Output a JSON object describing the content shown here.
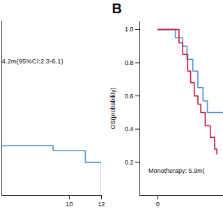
{
  "chart_data": [
    {
      "type": "line",
      "xlim": [
        5.8,
        12
      ],
      "xticks": [
        10,
        12
      ],
      "ylim": [
        0,
        1.05
      ],
      "tick_labels": "x",
      "annotations": [
        {
          "text": "4.2m(95%CI:2.3-6.1)",
          "x": 5.8,
          "y": 0.81
        }
      ],
      "series": [
        {
          "color": "#4f8fd0",
          "line_style": "step",
          "x": [
            5.8,
            9,
            11,
            12
          ],
          "values": [
            0.3,
            0.27,
            0.2,
            0.0
          ]
        }
      ]
    },
    {
      "type": "line",
      "title": "B",
      "y_label": "OS(probability)",
      "xlim": [
        -2.5,
        9
      ],
      "xticks": [
        0
      ],
      "ylim": [
        0,
        1.05
      ],
      "yticks": [
        {
          "value": 0.2,
          "label": "0.2"
        },
        {
          "value": 0.4,
          "label": "0.4"
        },
        {
          "value": 0.6,
          "label": "0.6"
        },
        {
          "value": 0.8,
          "label": "0.8"
        },
        {
          "value": 1,
          "label": "1.0"
        }
      ],
      "annotations": [
        {
          "text": "Monotherapy: 5.9m(",
          "x": -1.3,
          "y": 0.15
        }
      ],
      "series": [
        {
          "color": "#4f8fd0",
          "line_style": "step",
          "x": [
            0,
            2.4,
            3.4,
            4.0,
            4.8,
            5.5,
            6.2,
            6.8,
            9
          ],
          "values": [
            1,
            0.95,
            0.9,
            0.82,
            0.75,
            0.65,
            0.57,
            0.5,
            0.5
          ]
        },
        {
          "color": "#c8143c",
          "line_style": "step",
          "x": [
            0,
            2.9,
            3.4,
            4.1,
            4.5,
            5.0,
            5.5,
            5.9,
            6.5,
            7.2,
            7.8,
            8.1
          ],
          "values": [
            1,
            0.92,
            0.85,
            0.75,
            0.68,
            0.6,
            0.55,
            0.5,
            0.42,
            0.35,
            0.28,
            0.25
          ]
        }
      ]
    }
  ]
}
